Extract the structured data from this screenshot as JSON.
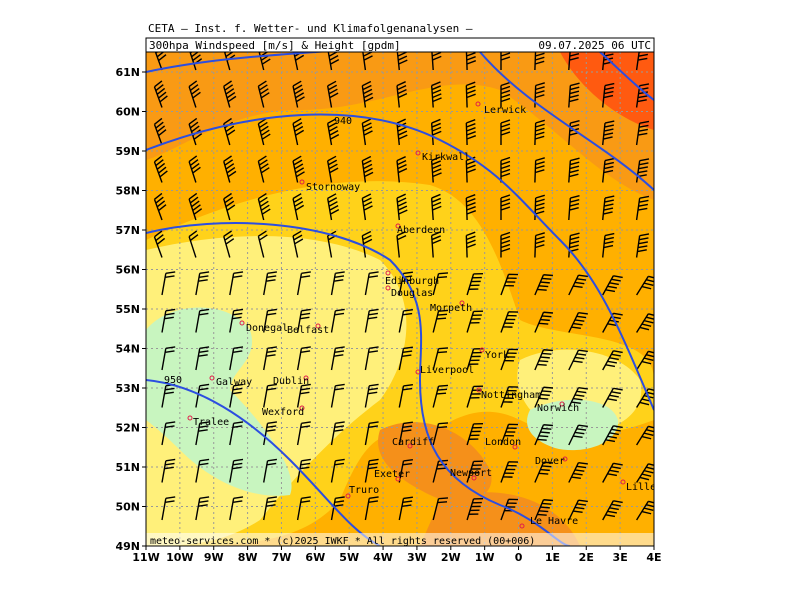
{
  "header": {
    "institute": "CETA – Inst. f. Wetter- und Klimafolgenanalysen –",
    "title": "300hpa Windspeed [m/s] & Height [gpdm]",
    "valid": "09.07.2025 06 UTC"
  },
  "map": {
    "lat_labels": [
      "61N",
      "60N",
      "59N",
      "58N",
      "57N",
      "56N",
      "55N",
      "54N",
      "53N",
      "52N",
      "51N",
      "50N",
      "49N"
    ],
    "lon_labels": [
      "11W",
      "10W",
      "9W",
      "8W",
      "7W",
      "6W",
      "5W",
      "4W",
      "3W",
      "2W",
      "1W",
      "0",
      "1E",
      "2E",
      "3E",
      "4E"
    ],
    "cities": [
      "Lerwick",
      "Kirkwall",
      "Stornoway",
      "Aberdeen",
      "Edinburgh",
      "Douglas",
      "Morpeth",
      "Donegal",
      "Belfast",
      "York",
      "Galway",
      "Dublin",
      "Liverpool",
      "Nottingham",
      "Wexford",
      "Norwich",
      "Tralee",
      "Cardiff",
      "London",
      "Dover",
      "Exeter",
      "Newport",
      "Lille",
      "Truro",
      "Le Havre"
    ],
    "contour_labels": [
      "940",
      "950"
    ]
  },
  "footer": "meteo-services.com * (c)2025 IWKF * All rights reserved (00+006)"
}
